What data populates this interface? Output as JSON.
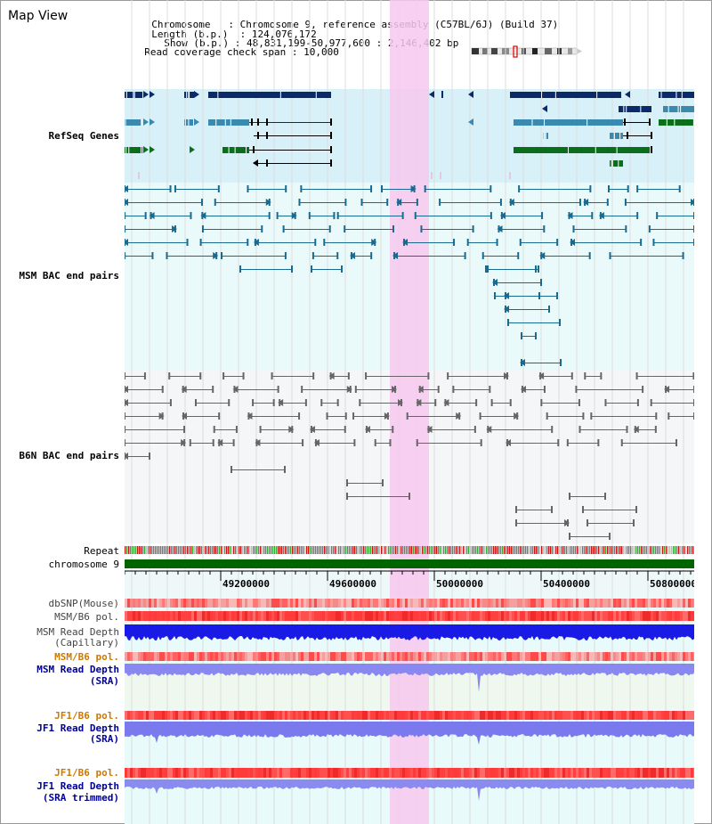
{
  "app_title": "Map View",
  "header": {
    "chromosome_label": "Chromosome",
    "chromosome_value": "Chromosome 9, reference assembly (C57BL/6J) (Build 37)",
    "length_label": "Length (b.p.)",
    "length_value": "124,076,172",
    "show_label": "Show (b.p.)",
    "show_value": "48,831,199-50,977,600 : 2,146,402 bp",
    "span_label": "Read coverage check span",
    "span_value": "10,000"
  },
  "tracks": {
    "refseq": "RefSeq Genes",
    "msm_bac": "MSM BAC end pairs",
    "b6n_bac": "B6N BAC end pairs",
    "repeat": "Repeat",
    "chromosome": "chromosome 9",
    "dbsnp": "dbSNP(Mouse)",
    "msm_b6_pol": "MSM/B6 pol.",
    "msm_depth_cap_1": "MSM Read Depth",
    "msm_depth_cap_2": "(Capillary)",
    "msm_b6_pol2": "MSM/B6 pol.",
    "msm_depth_sra_1": "MSM Read Depth",
    "msm_depth_sra_2": "(SRA)",
    "jf1_b6_pol": "JF1/B6 pol.",
    "jf1_depth_sra_1": "JF1 Read Depth",
    "jf1_depth_sra_2": "(SRA)",
    "jf1_b6_pol2": "JF1/B6 pol.",
    "jf1_depth_trim_1": "JF1 Read Depth",
    "jf1_depth_trim_2": "(SRA trimmed)"
  },
  "axis_ticks": [
    "49200000",
    "49600000",
    "50000000",
    "50400000",
    "50800000"
  ],
  "colors": {
    "refseq_label": "#000099",
    "msm_label": "#006080",
    "b6n_label": "#555566",
    "orange_label": "#cc7a00",
    "blue_label": "#000099",
    "highlight": "#f7c8ee",
    "chromosome_bar": "#006400"
  }
}
